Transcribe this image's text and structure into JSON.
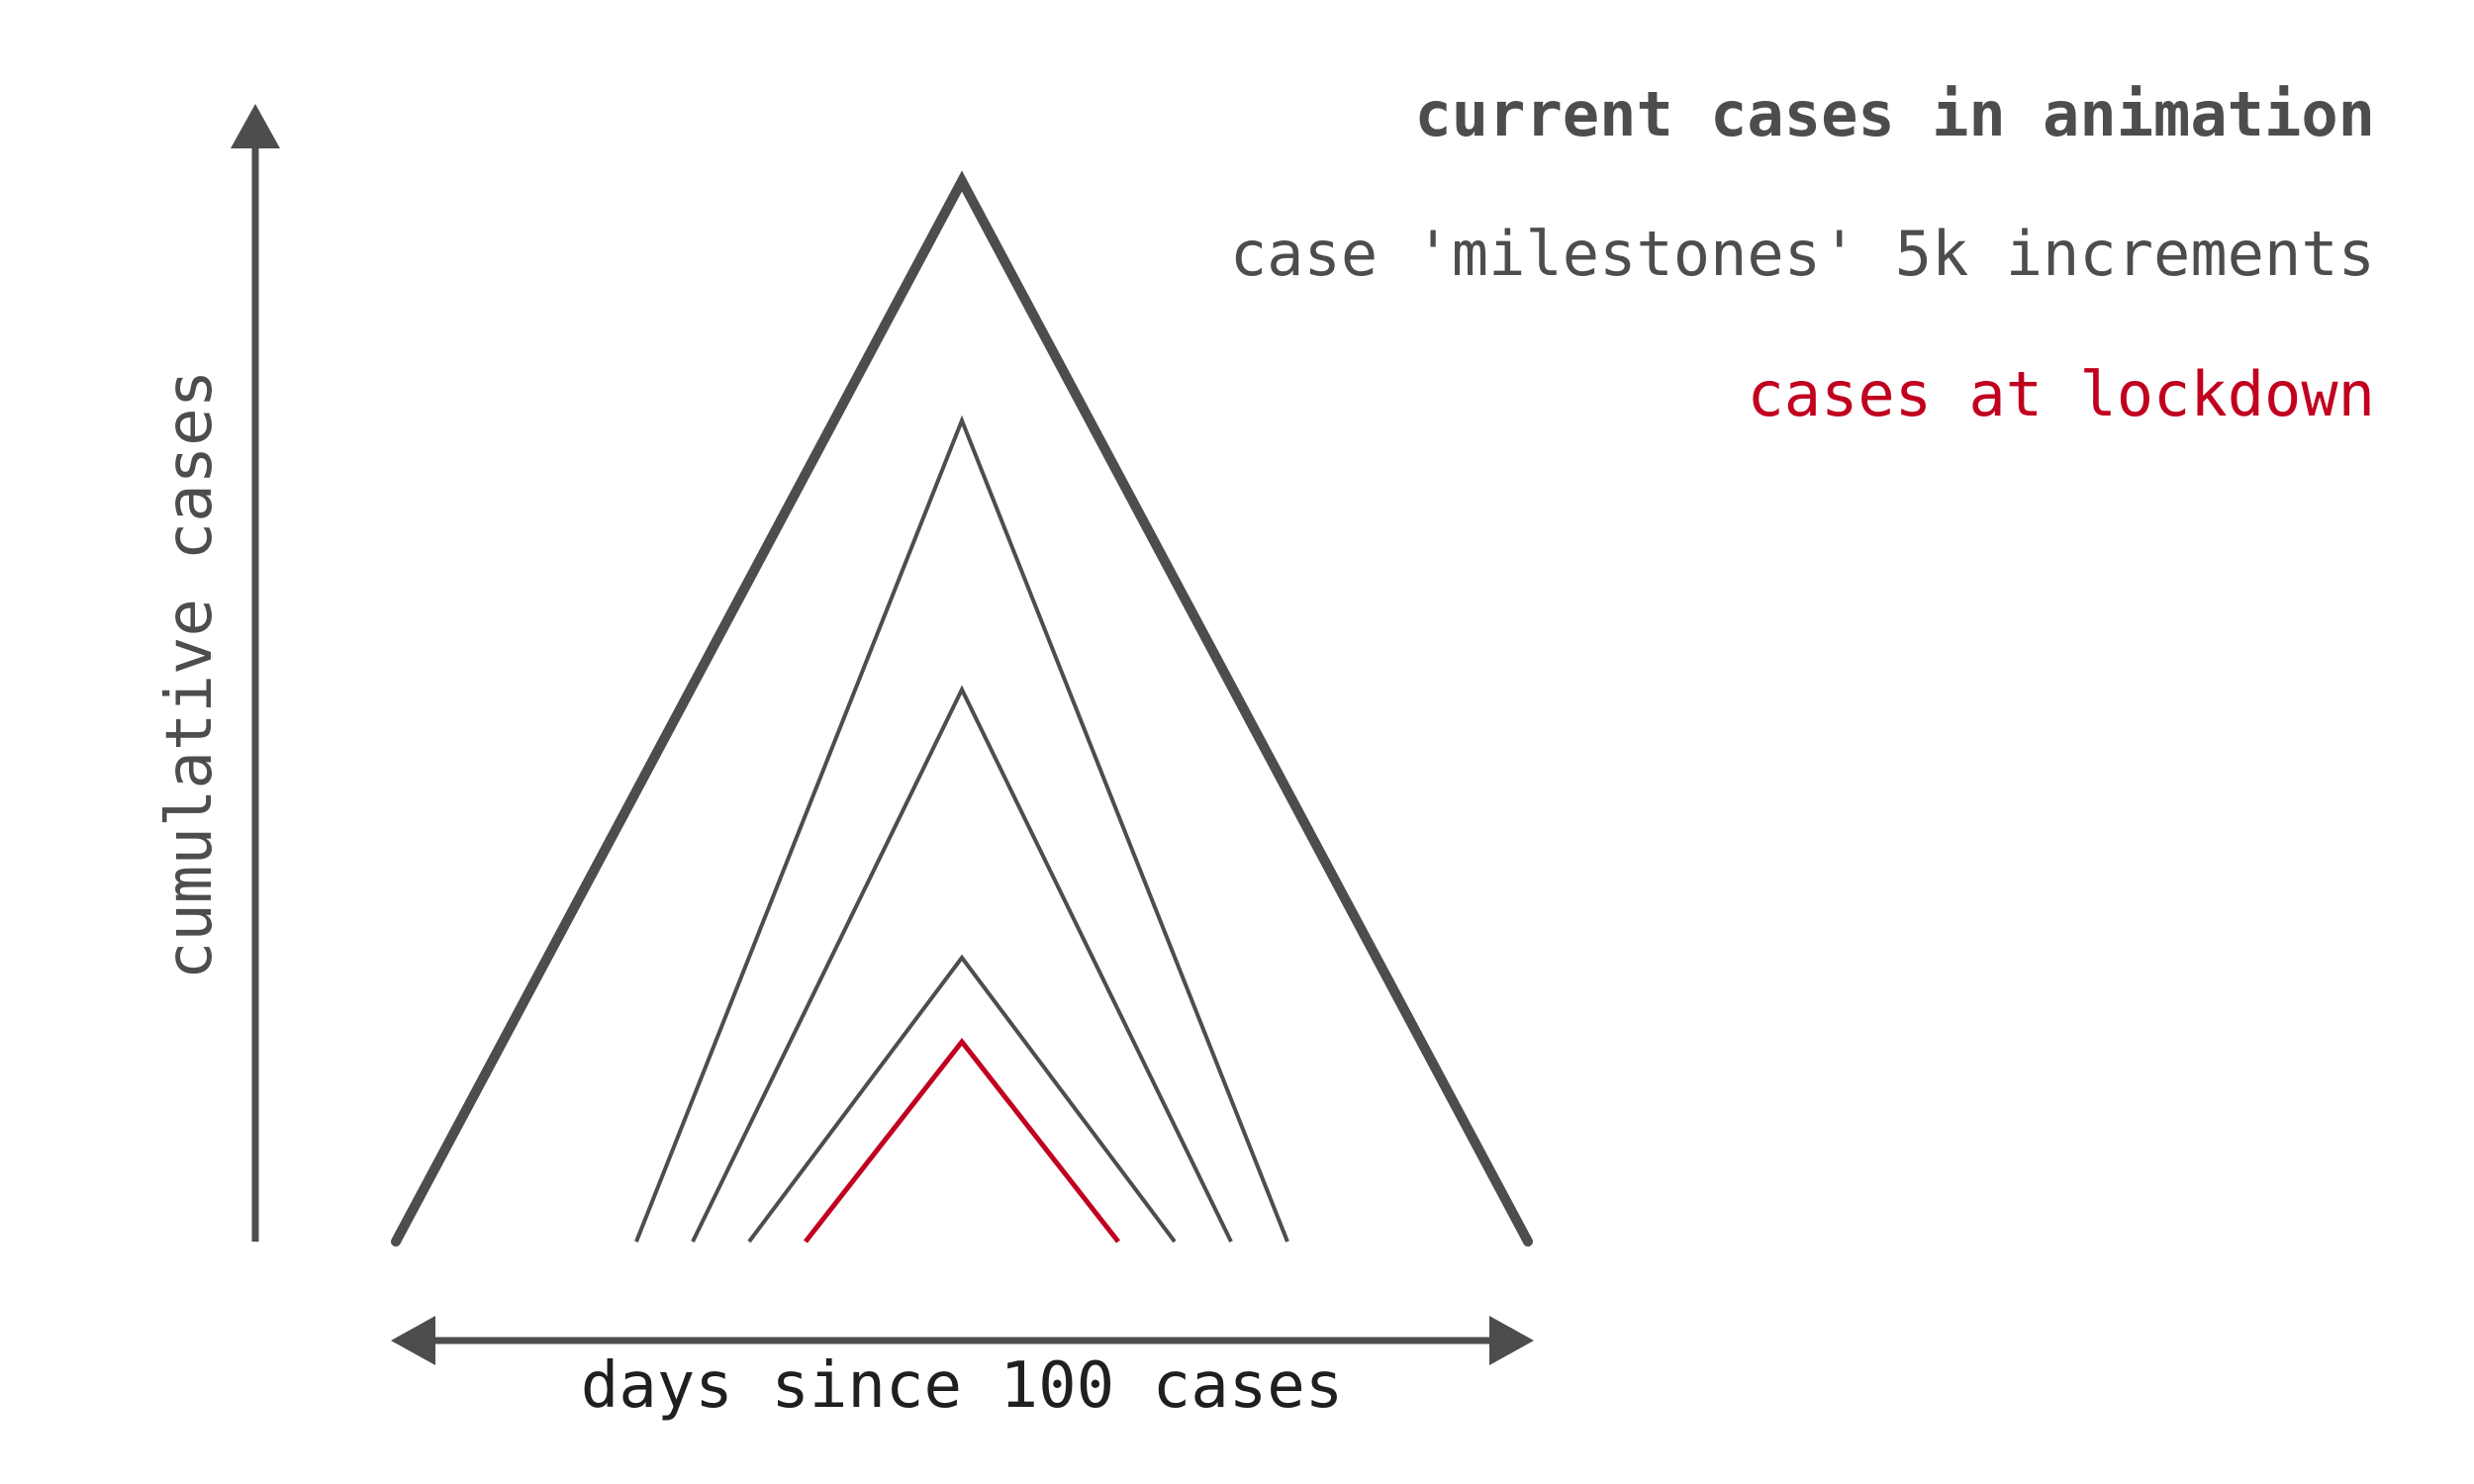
{
  "legend": {
    "current": "current cases in animation",
    "milestones": "case 'milestones' 5k increments",
    "lockdown": "cases at lockdown"
  },
  "axes": {
    "y_label": "cumulative cases",
    "x_label": "days since 100 cases"
  },
  "colors": {
    "ink": "#4d4d4d",
    "lockdown": "#c1001f",
    "background": "#ffffff"
  },
  "icons": {
    "y_axis": "arrow-up-icon",
    "x_axis": "double-arrow-horizontal-icon"
  }
}
